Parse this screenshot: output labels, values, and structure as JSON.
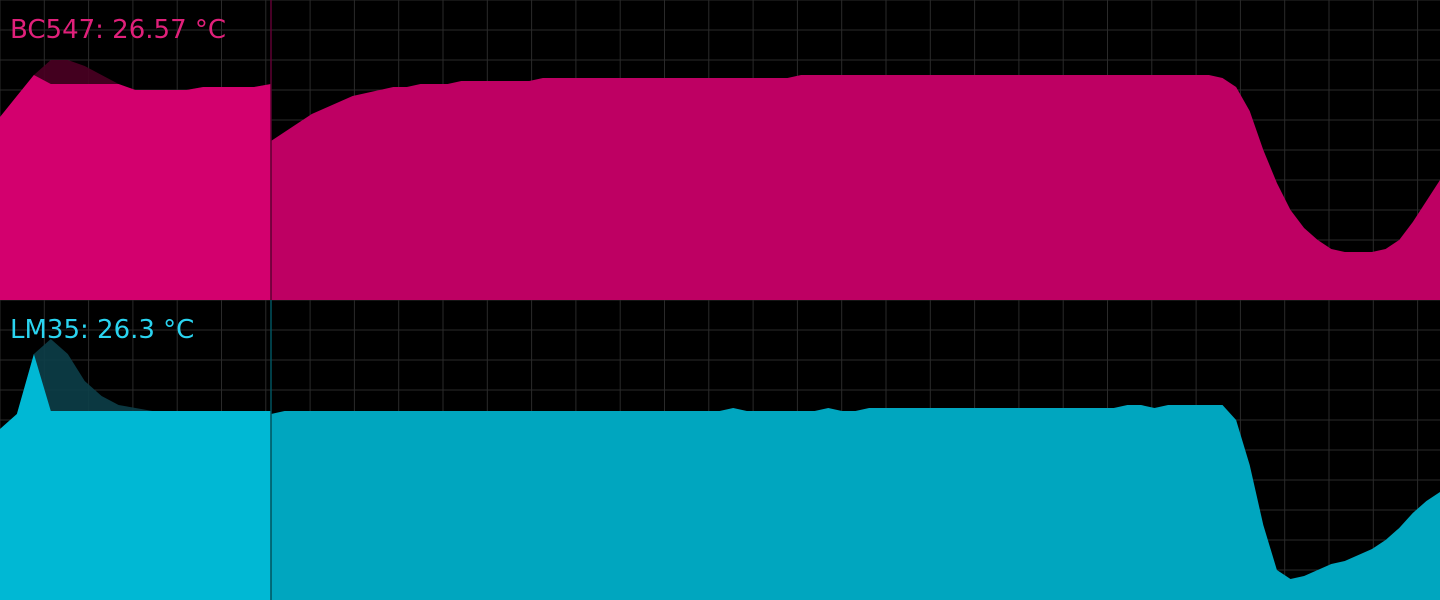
{
  "graphs": [
    {
      "sensor": "BC547",
      "readout": "BC547: 26.57 °C",
      "color": "#d3006e",
      "glow_color": "#4a0022",
      "history": [
        0.53,
        0.56,
        0.59,
        0.62,
        0.64,
        0.66,
        0.68,
        0.69,
        0.7,
        0.71,
        0.71,
        0.72,
        0.72,
        0.72,
        0.73,
        0.73,
        0.73,
        0.73,
        0.73,
        0.73,
        0.74,
        0.74,
        0.74,
        0.74,
        0.74,
        0.74,
        0.74,
        0.74,
        0.74,
        0.74,
        0.74,
        0.74,
        0.74,
        0.74,
        0.74,
        0.74,
        0.74,
        0.74,
        0.74,
        0.75,
        0.75,
        0.75,
        0.75,
        0.75,
        0.75,
        0.75,
        0.75,
        0.75,
        0.75,
        0.75,
        0.75,
        0.75,
        0.75,
        0.75,
        0.75,
        0.75,
        0.75,
        0.75,
        0.75,
        0.75,
        0.75,
        0.75,
        0.75,
        0.75,
        0.75,
        0.75,
        0.75,
        0.75,
        0.75,
        0.75,
        0.74,
        0.71,
        0.63,
        0.5,
        0.39,
        0.3,
        0.24,
        0.2,
        0.17,
        0.16,
        0.16,
        0.16,
        0.17,
        0.2,
        0.26,
        0.33,
        0.4
      ],
      "recent": [
        0.61,
        0.68,
        0.75,
        0.8,
        0.8,
        0.78,
        0.75,
        0.72,
        0.7,
        0.7,
        0.7,
        0.7,
        0.71,
        0.71,
        0.71,
        0.71,
        0.72
      ],
      "split_fraction": 0.188
    },
    {
      "sensor": "LM35",
      "readout": "LM35: 26.3 °C",
      "color": "#00b8d4",
      "glow_color": "#0c3e48",
      "history": [
        0.62,
        0.63,
        0.63,
        0.63,
        0.63,
        0.63,
        0.63,
        0.63,
        0.63,
        0.63,
        0.63,
        0.63,
        0.63,
        0.63,
        0.63,
        0.63,
        0.63,
        0.63,
        0.63,
        0.63,
        0.63,
        0.63,
        0.63,
        0.63,
        0.63,
        0.63,
        0.63,
        0.63,
        0.63,
        0.63,
        0.63,
        0.63,
        0.63,
        0.63,
        0.64,
        0.63,
        0.63,
        0.63,
        0.63,
        0.63,
        0.63,
        0.64,
        0.63,
        0.63,
        0.64,
        0.64,
        0.64,
        0.64,
        0.64,
        0.64,
        0.64,
        0.64,
        0.64,
        0.64,
        0.64,
        0.64,
        0.64,
        0.64,
        0.64,
        0.64,
        0.64,
        0.64,
        0.64,
        0.65,
        0.65,
        0.64,
        0.65,
        0.65,
        0.65,
        0.65,
        0.65,
        0.6,
        0.45,
        0.25,
        0.1,
        0.07,
        0.08,
        0.1,
        0.12,
        0.13,
        0.15,
        0.17,
        0.2,
        0.24,
        0.29,
        0.33,
        0.36
      ],
      "recent": [
        0.57,
        0.62,
        0.82,
        0.87,
        0.82,
        0.73,
        0.68,
        0.65,
        0.64,
        0.63,
        0.63,
        0.63,
        0.63,
        0.63,
        0.63,
        0.63,
        0.63
      ],
      "split_fraction": 0.188
    }
  ]
}
